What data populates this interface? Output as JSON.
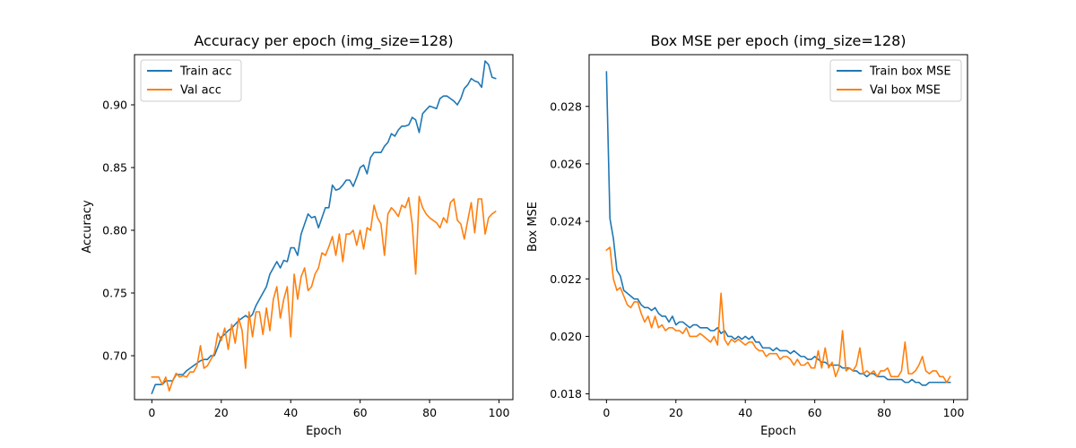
{
  "chart_data": [
    {
      "type": "line",
      "title": "Accuracy per epoch (img_size=128)",
      "xlabel": "Epoch",
      "ylabel": "Accuracy",
      "xlim": [
        -5,
        104
      ],
      "ylim": [
        0.665,
        0.94
      ],
      "xticks": [
        0,
        20,
        40,
        60,
        80,
        100
      ],
      "yticks": [
        0.7,
        0.75,
        0.8,
        0.85,
        0.9
      ],
      "ytick_labels": [
        "0.70",
        "0.75",
        "0.80",
        "0.85",
        "0.90"
      ],
      "legend_position": "upper-left",
      "grid": false,
      "series": [
        {
          "name": "Train acc",
          "color": "#1f77b4",
          "values": [
            0.67,
            0.677,
            0.677,
            0.677,
            0.68,
            0.68,
            0.68,
            0.685,
            0.685,
            0.685,
            0.688,
            0.69,
            0.692,
            0.694,
            0.696,
            0.697,
            0.697,
            0.7,
            0.7,
            0.707,
            0.715,
            0.717,
            0.72,
            0.722,
            0.725,
            0.728,
            0.73,
            0.732,
            0.73,
            0.733,
            0.74,
            0.745,
            0.75,
            0.755,
            0.765,
            0.77,
            0.775,
            0.77,
            0.776,
            0.775,
            0.786,
            0.786,
            0.78,
            0.797,
            0.805,
            0.813,
            0.81,
            0.811,
            0.802,
            0.81,
            0.818,
            0.818,
            0.836,
            0.832,
            0.833,
            0.836,
            0.84,
            0.84,
            0.835,
            0.842,
            0.85,
            0.852,
            0.845,
            0.858,
            0.862,
            0.862,
            0.862,
            0.867,
            0.87,
            0.877,
            0.875,
            0.88,
            0.883,
            0.883,
            0.884,
            0.89,
            0.888,
            0.878,
            0.893,
            0.896,
            0.899,
            0.898,
            0.897,
            0.905,
            0.907,
            0.907,
            0.905,
            0.903,
            0.9,
            0.905,
            0.913,
            0.916,
            0.921,
            0.919,
            0.918,
            0.914,
            0.935,
            0.932,
            0.922,
            0.921
          ]
        },
        {
          "name": "Val acc",
          "color": "#ff7f0e",
          "values": [
            0.683,
            0.683,
            0.683,
            0.677,
            0.683,
            0.672,
            0.68,
            0.686,
            0.683,
            0.684,
            0.683,
            0.687,
            0.687,
            0.692,
            0.708,
            0.69,
            0.692,
            0.697,
            0.702,
            0.718,
            0.712,
            0.722,
            0.705,
            0.725,
            0.71,
            0.73,
            0.72,
            0.69,
            0.735,
            0.715,
            0.735,
            0.735,
            0.717,
            0.738,
            0.72,
            0.745,
            0.755,
            0.73,
            0.745,
            0.755,
            0.715,
            0.765,
            0.745,
            0.763,
            0.77,
            0.752,
            0.755,
            0.765,
            0.77,
            0.782,
            0.78,
            0.787,
            0.795,
            0.78,
            0.797,
            0.775,
            0.797,
            0.797,
            0.8,
            0.788,
            0.8,
            0.785,
            0.802,
            0.8,
            0.82,
            0.81,
            0.805,
            0.78,
            0.813,
            0.818,
            0.815,
            0.811,
            0.82,
            0.818,
            0.826,
            0.805,
            0.765,
            0.827,
            0.818,
            0.813,
            0.81,
            0.808,
            0.806,
            0.802,
            0.81,
            0.806,
            0.822,
            0.825,
            0.808,
            0.805,
            0.793,
            0.808,
            0.822,
            0.798,
            0.825,
            0.825,
            0.797,
            0.81,
            0.813,
            0.815
          ]
        }
      ]
    },
    {
      "type": "line",
      "title": "Box MSE per epoch (img_size=128)",
      "xlabel": "Epoch",
      "ylabel": "Box MSE",
      "xlim": [
        -5,
        104
      ],
      "ylim": [
        0.0178,
        0.0298
      ],
      "xticks": [
        0,
        20,
        40,
        60,
        80,
        100
      ],
      "yticks": [
        0.018,
        0.02,
        0.022,
        0.024,
        0.026,
        0.028
      ],
      "ytick_labels": [
        "0.018",
        "0.020",
        "0.022",
        "0.024",
        "0.026",
        "0.028"
      ],
      "legend_position": "upper-right",
      "grid": false,
      "series": [
        {
          "name": "Train box MSE",
          "color": "#1f77b4",
          "values": [
            0.0292,
            0.0241,
            0.0234,
            0.0223,
            0.0221,
            0.0216,
            0.0215,
            0.0214,
            0.0213,
            0.0213,
            0.0211,
            0.021,
            0.021,
            0.0209,
            0.021,
            0.0208,
            0.0207,
            0.0207,
            0.0205,
            0.0207,
            0.0204,
            0.0205,
            0.0205,
            0.0204,
            0.0203,
            0.0204,
            0.0204,
            0.0203,
            0.0203,
            0.0203,
            0.0202,
            0.0202,
            0.0203,
            0.0201,
            0.0202,
            0.02,
            0.02,
            0.0199,
            0.02,
            0.0199,
            0.02,
            0.0199,
            0.02,
            0.0198,
            0.0198,
            0.0196,
            0.0196,
            0.0196,
            0.0195,
            0.0196,
            0.0195,
            0.0195,
            0.0195,
            0.0194,
            0.0195,
            0.0194,
            0.0193,
            0.0193,
            0.0192,
            0.0192,
            0.0193,
            0.0192,
            0.0191,
            0.0191,
            0.019,
            0.019,
            0.019,
            0.019,
            0.0189,
            0.0189,
            0.0189,
            0.0188,
            0.0188,
            0.0187,
            0.0187,
            0.0186,
            0.0187,
            0.0187,
            0.0186,
            0.0186,
            0.0186,
            0.0185,
            0.0185,
            0.0185,
            0.0185,
            0.0185,
            0.0184,
            0.0184,
            0.0185,
            0.0184,
            0.0184,
            0.0183,
            0.0183,
            0.0184,
            0.0184,
            0.0184,
            0.0184,
            0.0184,
            0.0184,
            0.0184
          ]
        },
        {
          "name": "Val box MSE",
          "color": "#ff7f0e",
          "values": [
            0.023,
            0.0231,
            0.022,
            0.0216,
            0.0217,
            0.0214,
            0.0211,
            0.021,
            0.0212,
            0.0212,
            0.0208,
            0.0205,
            0.0207,
            0.0203,
            0.0207,
            0.0203,
            0.0204,
            0.0202,
            0.0203,
            0.0203,
            0.0202,
            0.0202,
            0.0201,
            0.0203,
            0.02,
            0.02,
            0.02,
            0.0201,
            0.02,
            0.0199,
            0.0198,
            0.02,
            0.0197,
            0.0215,
            0.0199,
            0.0197,
            0.0199,
            0.0198,
            0.0199,
            0.0198,
            0.0197,
            0.0198,
            0.0198,
            0.0196,
            0.0195,
            0.0195,
            0.0193,
            0.0194,
            0.0194,
            0.0194,
            0.0192,
            0.0193,
            0.0193,
            0.0192,
            0.019,
            0.0192,
            0.019,
            0.019,
            0.0191,
            0.0189,
            0.0189,
            0.0195,
            0.0189,
            0.0196,
            0.0189,
            0.0191,
            0.0186,
            0.0189,
            0.0202,
            0.0188,
            0.0189,
            0.0188,
            0.019,
            0.0196,
            0.0187,
            0.0188,
            0.0187,
            0.0188,
            0.0186,
            0.0188,
            0.0188,
            0.0189,
            0.0186,
            0.0186,
            0.0186,
            0.0188,
            0.0198,
            0.0187,
            0.0187,
            0.0188,
            0.019,
            0.0193,
            0.0188,
            0.0187,
            0.0188,
            0.0188,
            0.0186,
            0.0186,
            0.0184,
            0.0186
          ]
        }
      ]
    }
  ]
}
